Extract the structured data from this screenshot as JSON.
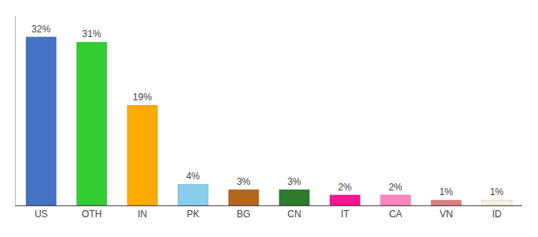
{
  "chart_data": {
    "type": "bar",
    "categories": [
      "US",
      "OTH",
      "IN",
      "PK",
      "BG",
      "CN",
      "IT",
      "CA",
      "VN",
      "ID"
    ],
    "values": [
      32,
      31,
      19,
      4,
      3,
      3,
      2,
      2,
      1,
      1
    ],
    "value_labels": [
      "32%",
      "31%",
      "19%",
      "4%",
      "3%",
      "3%",
      "2%",
      "2%",
      "1%",
      "1%"
    ],
    "colors": [
      "#4472c4",
      "#33cc33",
      "#ffaa00",
      "#87ceeb",
      "#b5651d",
      "#2d7a2d",
      "#ff1493",
      "#ff85c0",
      "#e08080",
      "#f5f0dc"
    ],
    "ylim": [
      0,
      36
    ],
    "grid": false,
    "data_labels": true,
    "tick_labels": "x"
  }
}
